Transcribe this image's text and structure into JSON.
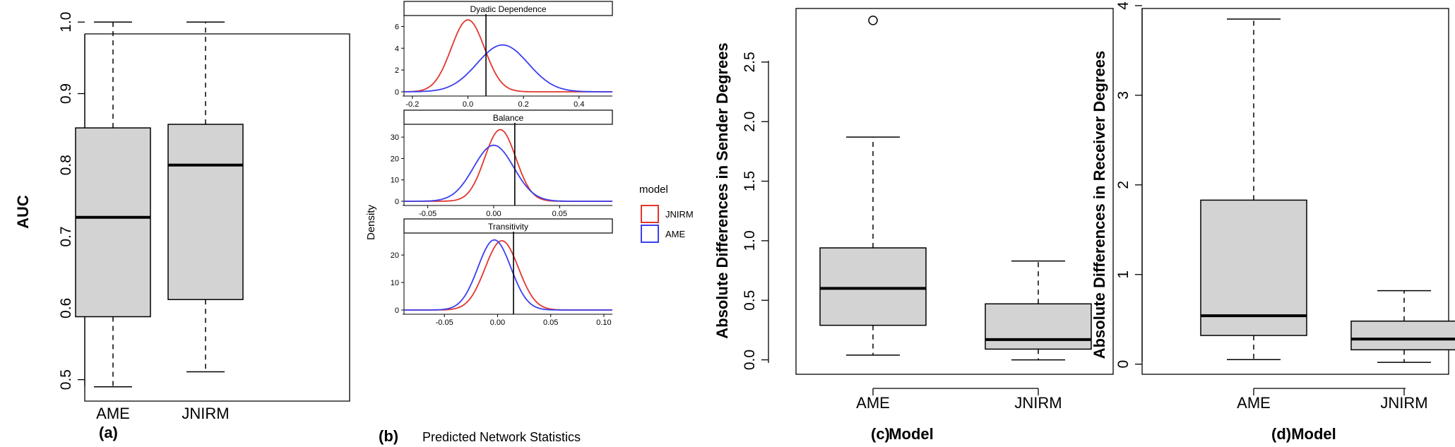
{
  "colors": {
    "jnirm": "#e2362f",
    "ame": "#3b3ff0",
    "box_fill": "#d3d3d3"
  },
  "panel_a": {
    "label": "(a)",
    "chart_data": {
      "type": "boxplot",
      "ylabel": "AUC",
      "xlabel": "",
      "ylim": [
        0.47,
        1.02
      ],
      "yticks": [
        "0.5",
        "0.6",
        "0.7",
        "0.8",
        "0.9",
        "1.0"
      ],
      "categories": [
        "AME",
        "JNIRM"
      ],
      "boxes": [
        {
          "name": "AME",
          "min": 0.49,
          "q1": 0.588,
          "median": 0.727,
          "q3": 0.852,
          "max": 1.0,
          "outliers": []
        },
        {
          "name": "JNIRM",
          "min": 0.511,
          "q1": 0.612,
          "median": 0.8,
          "q3": 0.857,
          "max": 1.0,
          "outliers": []
        }
      ]
    }
  },
  "panel_b": {
    "label": "(b)",
    "chart_data": {
      "type": "line",
      "ylabel": "Density",
      "xlabel": "Predicted Network Statistics",
      "legend": {
        "title": "model",
        "entries": [
          "JNIRM",
          "AME"
        ],
        "position": "right"
      },
      "facets": [
        {
          "title": "Dyadic Dependence",
          "xlim": [
            -0.23,
            0.52
          ],
          "ylim": [
            0,
            7
          ],
          "xticks": [
            "-0.2",
            "0.0",
            "0.2",
            "0.4"
          ],
          "xtick_values": [
            -0.2,
            0.0,
            0.2,
            0.4
          ],
          "yticks": [
            "0",
            "2",
            "4",
            "6"
          ],
          "ytick_values": [
            0,
            2,
            4,
            6
          ],
          "vline": 0.065,
          "series": [
            {
              "name": "JNIRM",
              "curve": "normal",
              "mean": 0.0,
              "sd": 0.06,
              "peak": 6.6
            },
            {
              "name": "AME",
              "curve": "normal",
              "mean": 0.125,
              "sd": 0.092,
              "peak": 4.3
            }
          ]
        },
        {
          "title": "Balance",
          "xlim": [
            -0.068,
            0.09
          ],
          "ylim": [
            0,
            36
          ],
          "xticks": [
            "-0.05",
            "0.00",
            "0.05"
          ],
          "xtick_values": [
            -0.05,
            0.0,
            0.05
          ],
          "yticks": [
            "0",
            "10",
            "20",
            "30"
          ],
          "ytick_values": [
            0,
            10,
            20,
            30
          ],
          "vline": 0.016,
          "series": [
            {
              "name": "JNIRM",
              "curve": "normal",
              "mean": 0.005,
              "sd": 0.0118,
              "peak": 33.5
            },
            {
              "name": "AME",
              "curve": "normal",
              "mean": 0.0,
              "sd": 0.0152,
              "peak": 26.2
            }
          ]
        },
        {
          "title": "Transitivity",
          "xlim": [
            -0.088,
            0.108
          ],
          "ylim": [
            0,
            28
          ],
          "xticks": [
            "-0.05",
            "0.00",
            "0.05",
            "0.10"
          ],
          "xtick_values": [
            -0.05,
            0.0,
            0.05,
            0.1
          ],
          "yticks": [
            "0",
            "10",
            "20"
          ],
          "ytick_values": [
            0,
            10,
            20
          ],
          "vline": 0.015,
          "series": [
            {
              "name": "JNIRM",
              "curve": "normal",
              "mean": 0.004,
              "sd": 0.0157,
              "peak": 25.2
            },
            {
              "name": "AME",
              "curve": "normal",
              "mean": -0.003,
              "sd": 0.0155,
              "peak": 25.5
            }
          ]
        }
      ]
    }
  },
  "panel_c": {
    "label": "(c)",
    "chart_data": {
      "type": "boxplot",
      "ylabel": "Absolute Differences in Sender Degrees",
      "xlabel": "Model",
      "ylim": [
        -0.05,
        2.95
      ],
      "yticks": [
        "0.0",
        "0.5",
        "1.0",
        "1.5",
        "2.0",
        "2.5"
      ],
      "ytick_values": [
        0,
        0.5,
        1.0,
        1.5,
        2.0,
        2.5
      ],
      "categories": [
        "AME",
        "JNIRM"
      ],
      "boxes": [
        {
          "name": "AME",
          "min": 0.04,
          "q1": 0.29,
          "median": 0.6,
          "q3": 0.94,
          "max": 1.87,
          "outliers": [
            2.85
          ]
        },
        {
          "name": "JNIRM",
          "min": 0.0,
          "q1": 0.09,
          "median": 0.17,
          "q3": 0.47,
          "max": 0.83,
          "outliers": []
        }
      ]
    }
  },
  "panel_d": {
    "label": "(d)",
    "chart_data": {
      "type": "boxplot",
      "ylabel": "Absolute Differences in Receiver Degrees",
      "xlabel": "Model",
      "ylim": [
        -0.05,
        4.0
      ],
      "yticks": [
        "0",
        "1",
        "2",
        "3",
        "4"
      ],
      "ytick_values": [
        0,
        1,
        2,
        3,
        4
      ],
      "categories": [
        "AME",
        "JNIRM"
      ],
      "boxes": [
        {
          "name": "AME",
          "min": 0.05,
          "q1": 0.32,
          "median": 0.54,
          "q3": 1.83,
          "max": 3.85,
          "outliers": []
        },
        {
          "name": "JNIRM",
          "min": 0.02,
          "q1": 0.16,
          "median": 0.28,
          "q3": 0.48,
          "max": 0.82,
          "outliers": []
        }
      ]
    }
  }
}
